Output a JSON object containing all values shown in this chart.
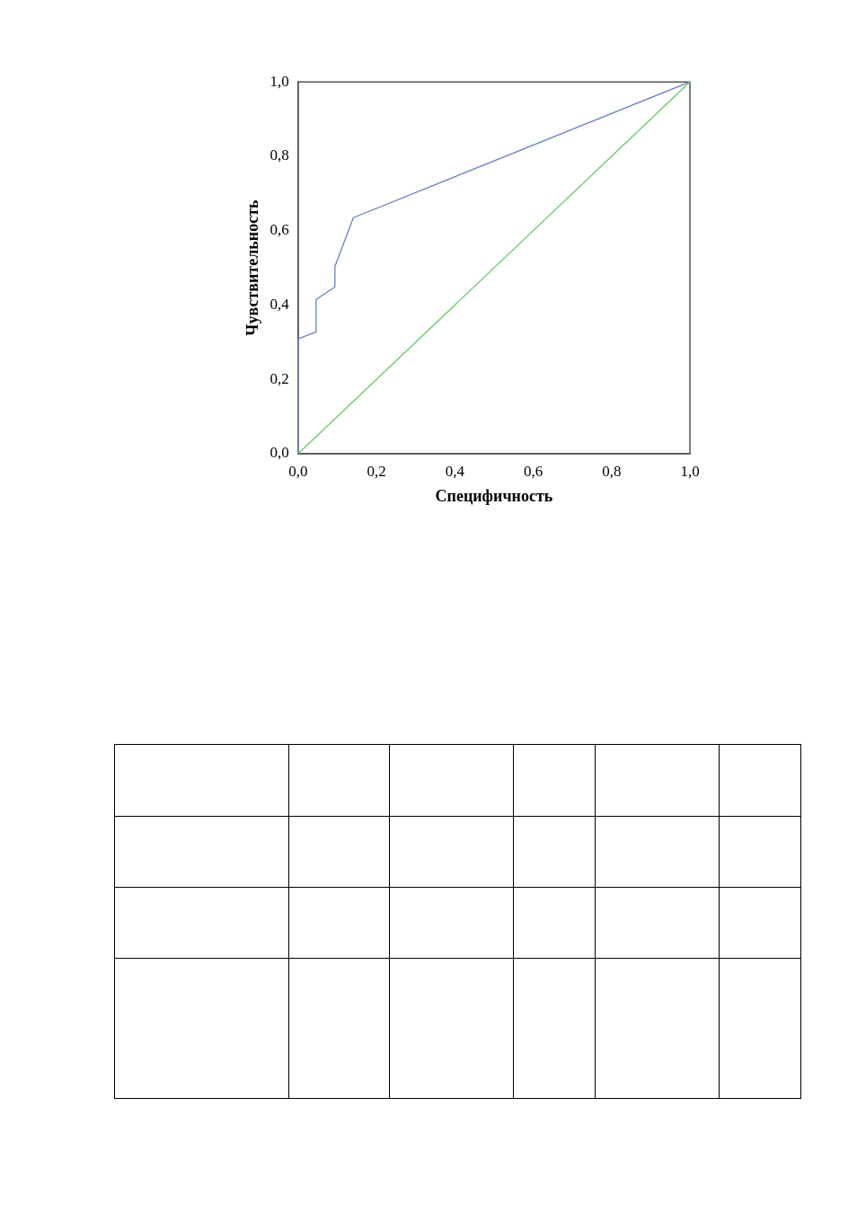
{
  "chart_data": {
    "type": "line",
    "xlabel": "Специфичность",
    "ylabel": "Чувствительность",
    "xlim": [
      0,
      1
    ],
    "ylim": [
      0,
      1
    ],
    "xticks": [
      {
        "value": 0,
        "label": "0,0"
      },
      {
        "value": 0.2,
        "label": "0,2"
      },
      {
        "value": 0.4,
        "label": "0,4"
      },
      {
        "value": 0.6,
        "label": "0,6"
      },
      {
        "value": 0.8,
        "label": "0,8"
      },
      {
        "value": 1,
        "label": "1,0"
      }
    ],
    "yticks": [
      {
        "value": 0,
        "label": "0,0"
      },
      {
        "value": 0.2,
        "label": "0,2"
      },
      {
        "value": 0.4,
        "label": "0,4"
      },
      {
        "value": 0.6,
        "label": "0,6"
      },
      {
        "value": 0.8,
        "label": "0,8"
      },
      {
        "value": 1,
        "label": "1,0"
      }
    ],
    "series": [
      {
        "color": "#6ccc6c",
        "x": [
          0,
          1
        ],
        "values": [
          0,
          1
        ]
      },
      {
        "color": "#6a7fc4",
        "x": [
          0,
          0,
          0.046,
          0.046,
          0.094,
          0.094,
          0.141,
          1
        ],
        "values": [
          0,
          0.309,
          0.328,
          0.415,
          0.449,
          0.504,
          0.635,
          1
        ]
      }
    ]
  }
}
